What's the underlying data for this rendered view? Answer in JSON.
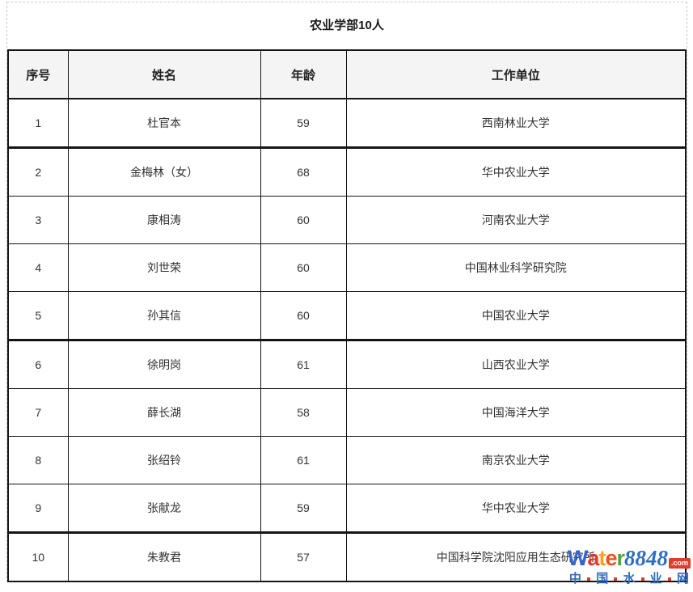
{
  "title": "农业学部10人",
  "table": {
    "headers": [
      "序号",
      "姓名",
      "年龄",
      "工作单位"
    ],
    "rows": [
      {
        "index": "1",
        "name": "杜官本",
        "age": "59",
        "unit": "西南林业大学"
      },
      {
        "index": "2",
        "name": "金梅林（女）",
        "age": "68",
        "unit": "华中农业大学"
      },
      {
        "index": "3",
        "name": "康相涛",
        "age": "60",
        "unit": "河南农业大学"
      },
      {
        "index": "4",
        "name": "刘世荣",
        "age": "60",
        "unit": "中国林业科学研究院"
      },
      {
        "index": "5",
        "name": "孙其信",
        "age": "60",
        "unit": "中国农业大学"
      },
      {
        "index": "6",
        "name": "徐明岗",
        "age": "61",
        "unit": "山西农业大学"
      },
      {
        "index": "7",
        "name": "薛长湖",
        "age": "58",
        "unit": "中国海洋大学"
      },
      {
        "index": "8",
        "name": "张绍铃",
        "age": "61",
        "unit": "南京农业大学"
      },
      {
        "index": "9",
        "name": "张献龙",
        "age": "59",
        "unit": "华中农业大学"
      },
      {
        "index": "10",
        "name": "朱教君",
        "age": "57",
        "unit": "中国科学院沈阳应用生态研究所"
      }
    ]
  },
  "watermark": {
    "letters": [
      {
        "ch": "W",
        "color": "#3465c8"
      },
      {
        "ch": "a",
        "color": "#e13b30"
      },
      {
        "ch": "t",
        "color": "#f6a318"
      },
      {
        "ch": "e",
        "color": "#e8541e"
      },
      {
        "ch": "r",
        "color": "#4ca832"
      }
    ],
    "number": "8848",
    "suffix": ".com",
    "subtitle": "中国水业网",
    "number_color": "#2e6cc0",
    "subtitle_color": "#2e6cc0",
    "accent_red": "#e13b30"
  },
  "colors": {
    "header_bg": "#f4f4f4",
    "border": "#151515",
    "text": "#333333",
    "dashed_border": "#cccccc"
  }
}
